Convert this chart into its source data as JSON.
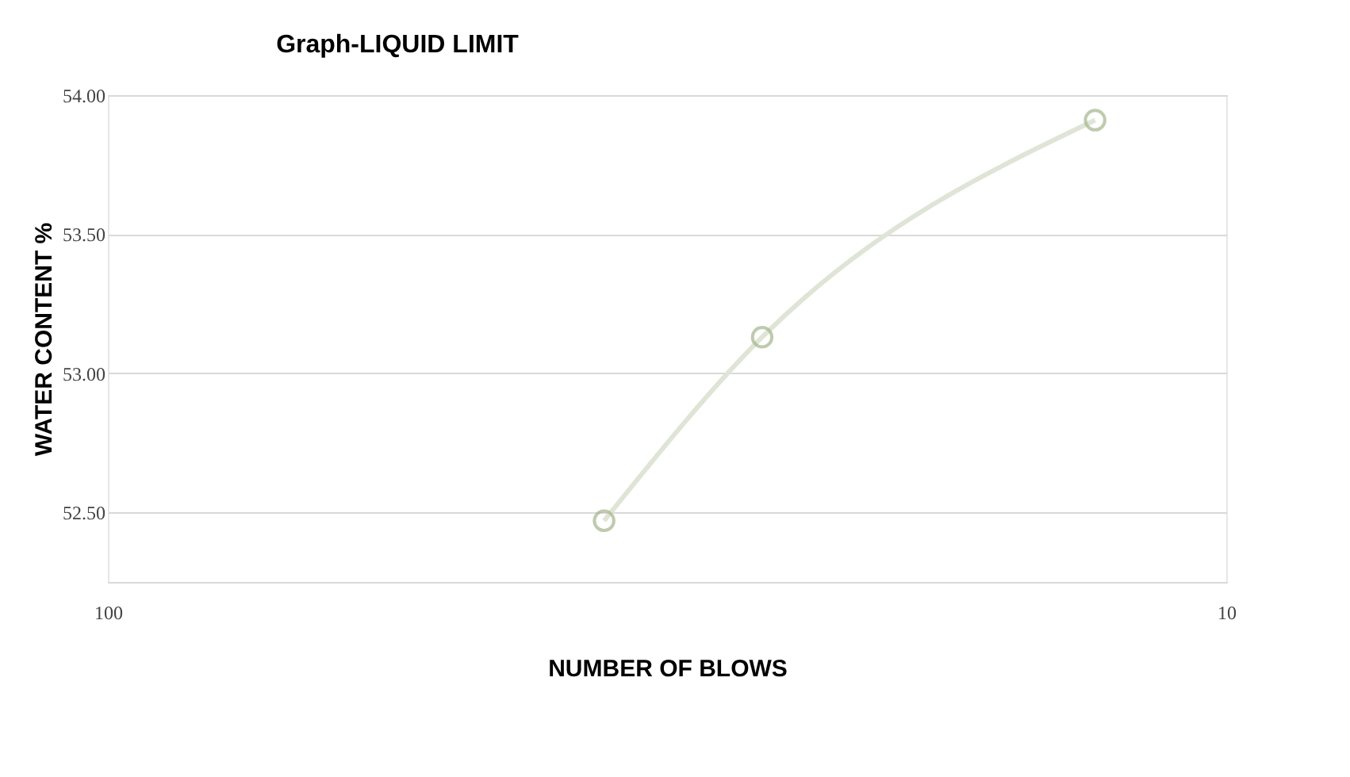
{
  "chart_data": {
    "type": "line",
    "title": "Graph-LIQUID LIMIT",
    "xlabel": "NUMBER OF BLOWS",
    "ylabel": "WATER CONTENT %",
    "x": [
      36,
      26,
      13.1
    ],
    "series": [
      {
        "color": "#dfe5d6",
        "values": [
          52.47,
          53.13,
          53.91
        ]
      }
    ],
    "log": "x",
    "xlim": [
      100,
      10
    ],
    "xticks": [
      100,
      10
    ],
    "ylim": [
      52.25,
      54.0
    ],
    "yticks": [
      {
        "value": 52.5,
        "label": "52.50"
      },
      {
        "value": 53.0,
        "label": "53.00"
      },
      {
        "value": 53.5,
        "label": "53.50"
      },
      {
        "value": 54.0,
        "label": "54.00"
      }
    ],
    "grid": true,
    "marker": "circle",
    "line_style": "solid"
  }
}
